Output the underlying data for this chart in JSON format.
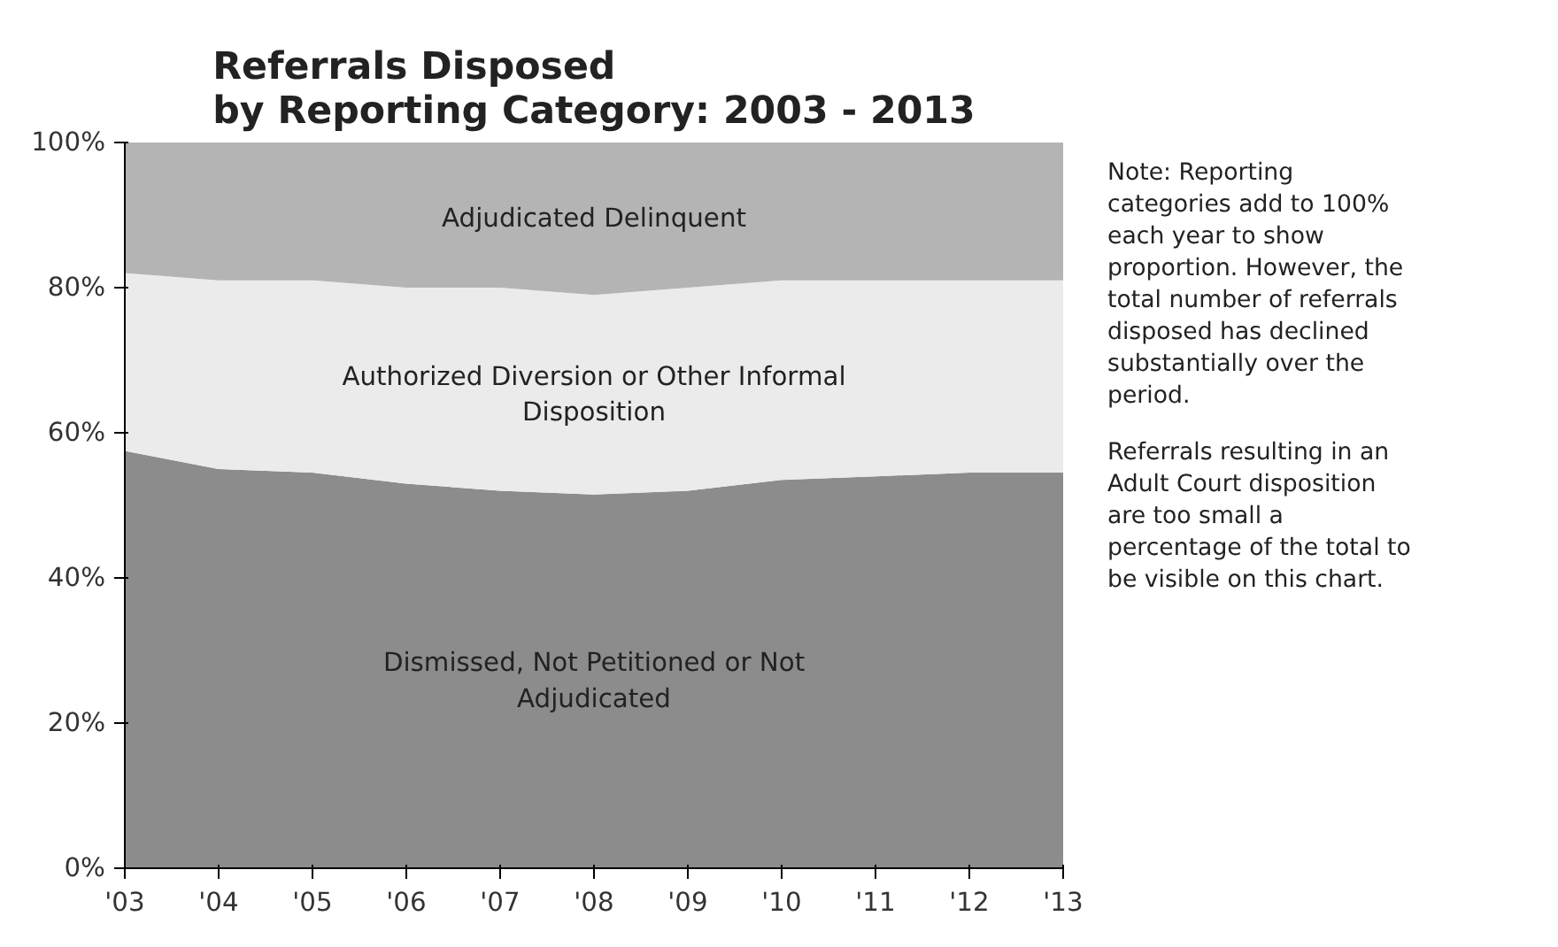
{
  "chart_data": {
    "type": "area",
    "stacked": true,
    "title": "Referrals Disposed\nby Reporting Category: 2003 - 2013",
    "categories": [
      "'03",
      "'04",
      "'05",
      "'06",
      "'07",
      "'08",
      "'09",
      "'10",
      "'11",
      "'12",
      "'13"
    ],
    "series": [
      {
        "name": "Dismissed, Not Petitioned or Not\nAdjudicated",
        "color": "#8c8c8c",
        "values": [
          57.5,
          55,
          54.5,
          53,
          52,
          51.5,
          52,
          53.5,
          54,
          54.5,
          54.5
        ]
      },
      {
        "name": "Authorized Diversion or Other Informal\nDisposition",
        "color": "#ebebeb",
        "values": [
          24.5,
          26,
          26.5,
          27,
          28,
          27.5,
          28,
          27.5,
          27,
          26.5,
          26.5
        ]
      },
      {
        "name": "Adjudicated Delinquent",
        "color": "#b4b4b4",
        "values": [
          18,
          19,
          19,
          20,
          20,
          21,
          20,
          19,
          19,
          19,
          19
        ]
      }
    ],
    "ylim": [
      0,
      100
    ],
    "yticks": [
      {
        "value": 0,
        "label": "0%"
      },
      {
        "value": 20,
        "label": "20%"
      },
      {
        "value": 40,
        "label": "40%"
      },
      {
        "value": 60,
        "label": "60%"
      },
      {
        "value": 80,
        "label": "80%"
      },
      {
        "value": 100,
        "label": "100%"
      }
    ],
    "grid": false,
    "legend": false,
    "annotations": [
      "Note: Reporting\ncategories add to 100%\neach year to show\nproportion. However, the\ntotal number of referrals\ndisposed has declined\nsubstantially over the\nperiod.",
      "Referrals resulting in an\nAdult Court disposition\nare too small a\npercentage of the total to\nbe visible on this chart."
    ]
  }
}
